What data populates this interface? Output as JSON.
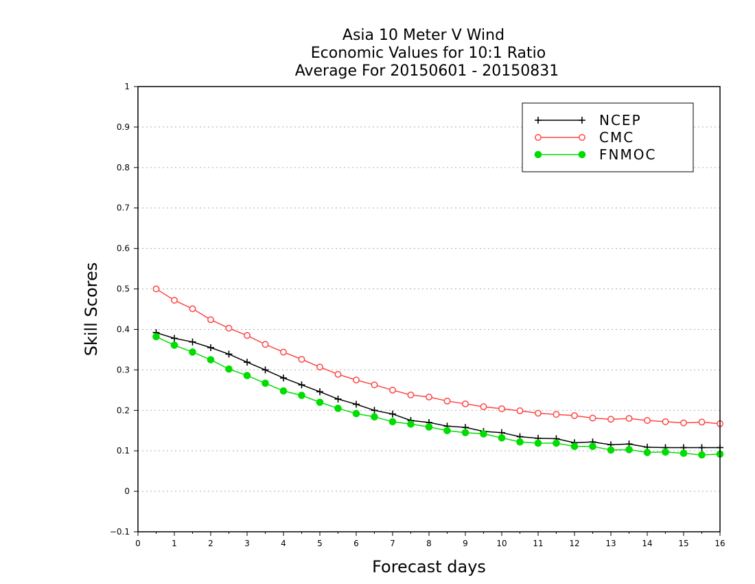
{
  "chart_data": {
    "type": "line",
    "title": [
      "Asia 10 Meter V Wind",
      "Economic Values for 10:1 Ratio",
      "Average For 20150601 - 20150831"
    ],
    "xlabel": "Forecast days",
    "ylabel": "Skill Scores",
    "xlim": [
      0,
      16
    ],
    "ylim": [
      -0.1,
      1
    ],
    "xticks": [
      "0",
      "1",
      "2",
      "3",
      "4",
      "5",
      "6",
      "7",
      "8",
      "9",
      "10",
      "11",
      "12",
      "13",
      "14",
      "15",
      "16"
    ],
    "yticks": [
      "−0.1",
      "0",
      "0.1",
      "0.2",
      "0.3",
      "0.4",
      "0.5",
      "0.6",
      "0.7",
      "0.8",
      "0.9",
      "1"
    ],
    "grid": "horizontal dotted",
    "legend_position": "top-right",
    "x": [
      0.5,
      1.0,
      1.5,
      2.0,
      2.5,
      3.0,
      3.5,
      4.0,
      4.5,
      5.0,
      5.5,
      6.0,
      6.5,
      7.0,
      7.5,
      8.0,
      8.5,
      9.0,
      9.5,
      10.0,
      10.5,
      11.0,
      11.5,
      12.0,
      12.5,
      13.0,
      13.5,
      14.0,
      14.5,
      15.0,
      15.5,
      16.0
    ],
    "series": [
      {
        "name": "NCEP",
        "color": "#000000",
        "marker": "plus",
        "values": [
          0.392,
          0.378,
          0.369,
          0.355,
          0.339,
          0.319,
          0.3,
          0.28,
          0.263,
          0.246,
          0.228,
          0.215,
          0.2,
          0.191,
          0.175,
          0.17,
          0.161,
          0.158,
          0.148,
          0.145,
          0.135,
          0.131,
          0.13,
          0.12,
          0.122,
          0.115,
          0.117,
          0.109,
          0.108,
          0.108,
          0.108,
          0.108
        ]
      },
      {
        "name": "CMC",
        "color": "#ff4444",
        "marker": "open-circle",
        "values": [
          0.5,
          0.472,
          0.451,
          0.424,
          0.403,
          0.385,
          0.363,
          0.344,
          0.326,
          0.307,
          0.289,
          0.275,
          0.263,
          0.25,
          0.238,
          0.233,
          0.223,
          0.216,
          0.209,
          0.204,
          0.199,
          0.193,
          0.19,
          0.187,
          0.181,
          0.178,
          0.18,
          0.175,
          0.172,
          0.169,
          0.171,
          0.167
        ]
      },
      {
        "name": "FNMOC",
        "color": "#00dd00",
        "marker": "filled-circle",
        "values": [
          0.382,
          0.361,
          0.344,
          0.325,
          0.302,
          0.286,
          0.267,
          0.248,
          0.237,
          0.22,
          0.205,
          0.192,
          0.184,
          0.172,
          0.166,
          0.159,
          0.15,
          0.145,
          0.142,
          0.132,
          0.122,
          0.119,
          0.119,
          0.111,
          0.111,
          0.102,
          0.103,
          0.096,
          0.097,
          0.094,
          0.09,
          0.092
        ]
      }
    ]
  }
}
